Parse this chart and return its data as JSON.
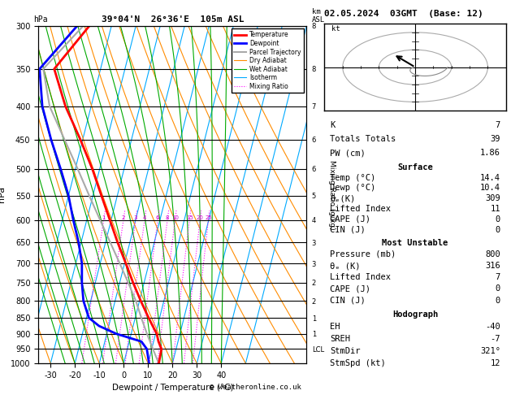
{
  "title_left": "39°04'N  26°36'E  105m ASL",
  "title_top_right": "02.05.2024  03GMT  (Base: 12)",
  "xlabel": "Dewpoint / Temperature (°C)",
  "pressure_levels": [
    300,
    350,
    400,
    450,
    500,
    550,
    600,
    650,
    700,
    750,
    800,
    850,
    900,
    950,
    1000
  ],
  "pressure_labels": [
    "300",
    "350",
    "400",
    "450",
    "500",
    "550",
    "600",
    "650",
    "700",
    "750",
    "800",
    "850",
    "900",
    "950",
    "1000"
  ],
  "km_map": {
    "300": "8",
    "350": "8",
    "400": "7",
    "450": "6",
    "500": "6",
    "550": "5",
    "600": "4",
    "650": "3",
    "700": "3",
    "750": "2",
    "800": "2",
    "850": "1",
    "900": "1",
    "950": "LCL"
  },
  "temperature_profile": {
    "pressure": [
      1000,
      950,
      925,
      900,
      875,
      850,
      800,
      750,
      700,
      650,
      600,
      550,
      500,
      450,
      400,
      350,
      300
    ],
    "temp": [
      14.4,
      14.0,
      12.0,
      10.5,
      8.0,
      5.5,
      0.5,
      -4.5,
      -9.5,
      -15.0,
      -20.5,
      -26.5,
      -33.0,
      -41.0,
      -50.5,
      -59.0,
      -49.0
    ]
  },
  "dewpoint_profile": {
    "pressure": [
      1000,
      950,
      925,
      900,
      875,
      850,
      800,
      750,
      700,
      650,
      600,
      550,
      500,
      450,
      400,
      350,
      300
    ],
    "dewp": [
      10.4,
      8.0,
      5.0,
      -6.0,
      -14.0,
      -19.0,
      -23.0,
      -25.5,
      -27.5,
      -31.0,
      -35.5,
      -40.0,
      -46.0,
      -53.0,
      -60.0,
      -65.0,
      -54.0
    ]
  },
  "parcel_trajectory": {
    "pressure": [
      1000,
      950,
      900,
      850,
      800,
      750,
      700,
      650,
      600,
      550,
      500,
      450,
      400,
      350,
      300
    ],
    "temp": [
      14.4,
      10.5,
      6.5,
      2.5,
      -1.5,
      -6.5,
      -12.0,
      -18.0,
      -24.5,
      -31.5,
      -39.0,
      -47.5,
      -57.0,
      -63.5,
      -51.5
    ]
  },
  "legend_items": [
    {
      "label": "Temperature",
      "color": "#ff0000",
      "lw": 2.0,
      "ls": "-"
    },
    {
      "label": "Dewpoint",
      "color": "#0000ff",
      "lw": 2.0,
      "ls": "-"
    },
    {
      "label": "Parcel Trajectory",
      "color": "#aaaaaa",
      "lw": 1.5,
      "ls": "-"
    },
    {
      "label": "Dry Adiabat",
      "color": "#ff8c00",
      "lw": 0.8,
      "ls": "-"
    },
    {
      "label": "Wet Adiabat",
      "color": "#00aa00",
      "lw": 0.8,
      "ls": "-"
    },
    {
      "label": "Isotherm",
      "color": "#00aaff",
      "lw": 0.8,
      "ls": "-"
    },
    {
      "label": "Mixing Ratio",
      "color": "#ff00ff",
      "lw": 0.8,
      "ls": ":"
    }
  ],
  "mixing_ratio_values": [
    1,
    2,
    3,
    4,
    6,
    8,
    10,
    15,
    20,
    25
  ],
  "stats": {
    "K": 7,
    "Totals Totals": 39,
    "PW (cm)": 1.86,
    "Surface Temp (C)": 14.4,
    "Surface Dewp (C)": 10.4,
    "theta_e_K": 309,
    "Lifted Index": 11,
    "CAPE (J)": 0,
    "CIN (J)": 0,
    "MU Pressure (mb)": 800,
    "MU theta_e (K)": 316,
    "MU LI": 7,
    "MU CAPE (J)": 0,
    "MU CIN (J)": 0,
    "EH": -40,
    "SREH": -7,
    "StmDir": 321,
    "StmSpd (kt)": 12
  }
}
